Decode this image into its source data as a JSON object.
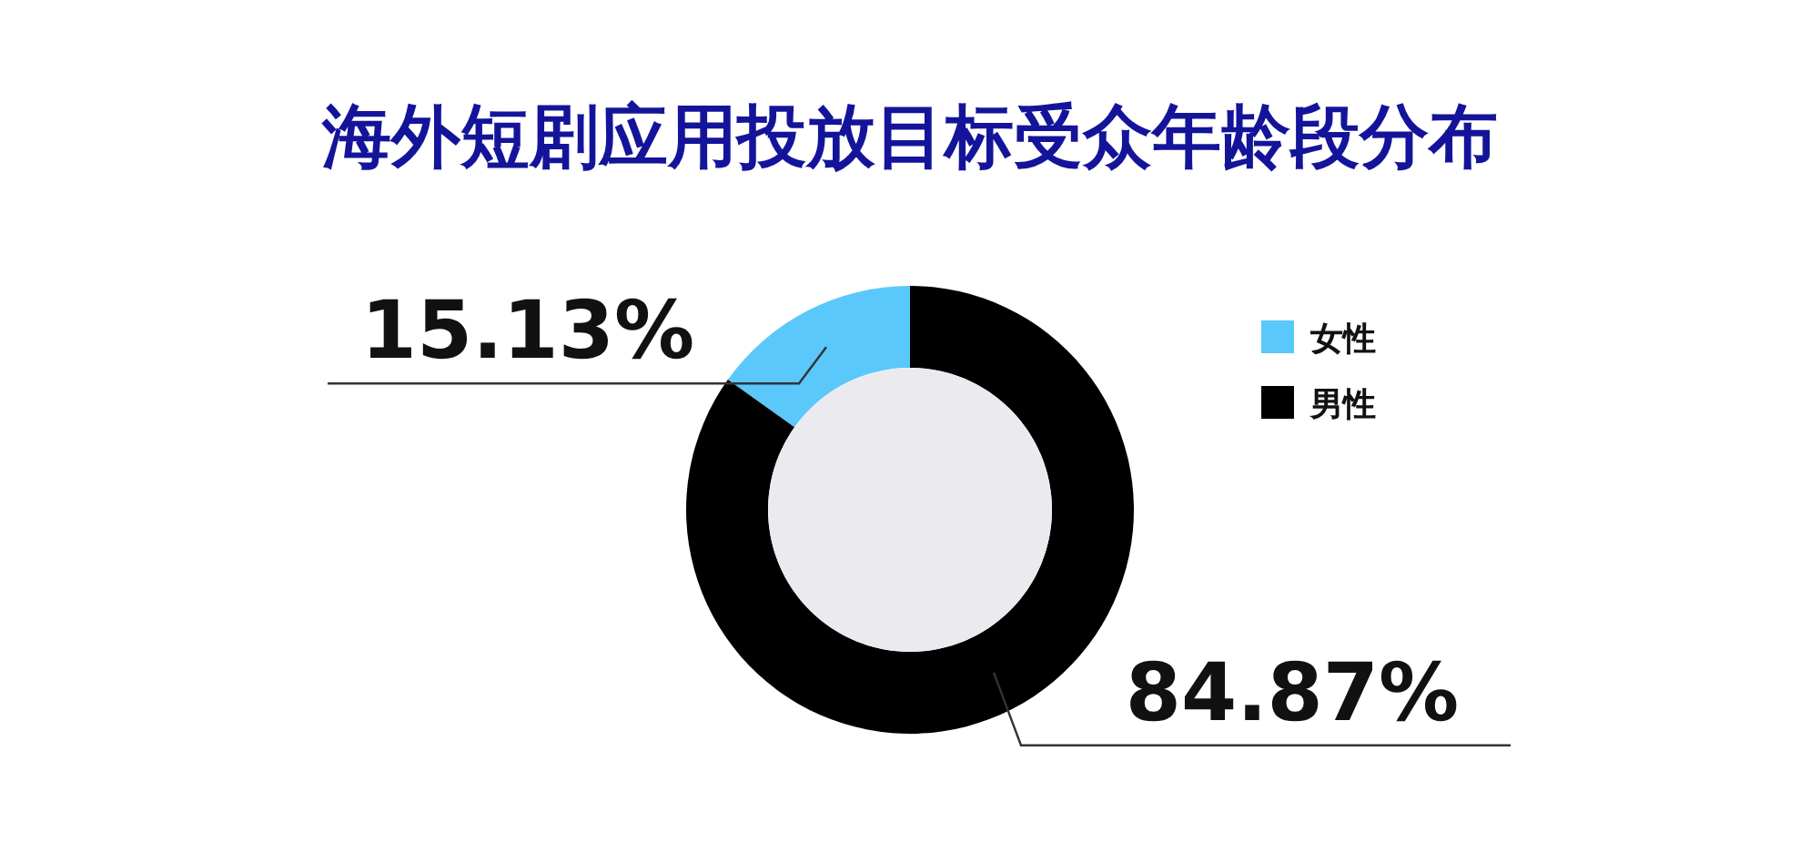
{
  "chart_data": {
    "type": "donut",
    "title": "海外短剧应用投放目标受众年龄段分布",
    "categories": [
      "女性",
      "男性"
    ],
    "values": [
      15.13,
      84.87
    ],
    "colors": [
      "#5ac8fa",
      "#000000"
    ],
    "value_labels": [
      "15.13%",
      "84.87%"
    ],
    "legend": "right"
  }
}
